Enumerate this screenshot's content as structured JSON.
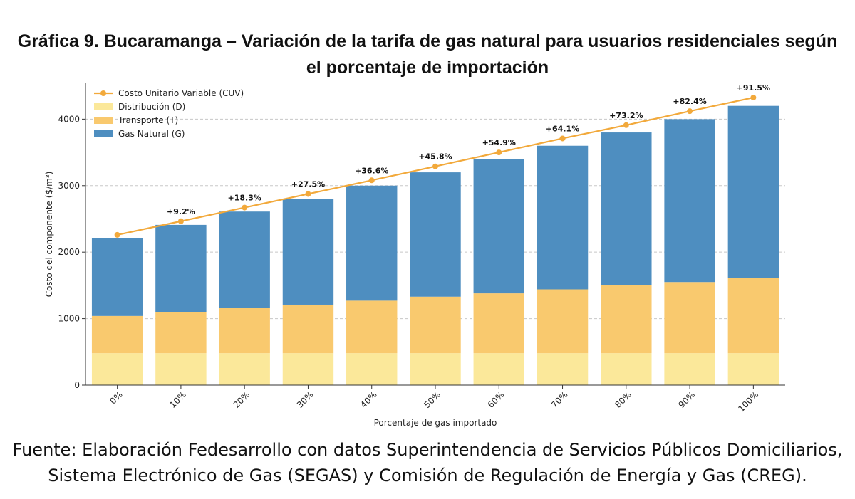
{
  "title": {
    "line1": "Gráfica 9. Bucaramanga – Variación de la tarifa de gas natural para usuarios residenciales según",
    "line2": "el porcentaje de importación"
  },
  "source": {
    "line1": "Fuente: Elaboración Fedesarrollo con datos Superintendencia de Servicios Públicos Domiciliarios,",
    "line2": "Sistema Electrónico de Gas (SEGAS) y Comisión de Regulación de Energía y Gas (CREG)."
  },
  "chart_data": {
    "type": "bar",
    "stacked": true,
    "categories": [
      "0%",
      "10%",
      "20%",
      "30%",
      "40%",
      "50%",
      "60%",
      "70%",
      "80%",
      "90%",
      "100%"
    ],
    "xlabel": "Porcentaje de gas importado",
    "ylabel": "Costo del componente ($/m³)",
    "ylim": [
      0,
      4550
    ],
    "yticks": [
      0,
      1000,
      2000,
      3000,
      4000
    ],
    "grid": "y",
    "legend_position": "top-left",
    "series": [
      {
        "name": "Distribución (D)",
        "color": "#fbe89a",
        "values": [
          480,
          480,
          480,
          480,
          480,
          480,
          480,
          480,
          480,
          480,
          480
        ]
      },
      {
        "name": "Transporte (T)",
        "color": "#f9c96e",
        "values": [
          560,
          620,
          680,
          730,
          790,
          850,
          900,
          960,
          1020,
          1070,
          1130
        ]
      },
      {
        "name": "Gas Natural (G)",
        "color": "#4e8ec0",
        "values": [
          1170,
          1310,
          1450,
          1590,
          1730,
          1870,
          2020,
          2160,
          2300,
          2450,
          2590
        ]
      }
    ],
    "line_series": {
      "name": "Costo Unitario Variable (CUV)",
      "color": "#f2a93b",
      "values": [
        2260,
        2465,
        2670,
        2875,
        3080,
        3290,
        3500,
        3710,
        3910,
        4120,
        4325
      ],
      "labels": [
        "",
        "+9.2%",
        "+18.3%",
        "+27.5%",
        "+36.6%",
        "+45.8%",
        "+54.9%",
        "+64.1%",
        "+73.2%",
        "+82.4%",
        "+91.5%"
      ]
    },
    "legend_order": [
      "Costo Unitario Variable (CUV)",
      "Distribución (D)",
      "Transporte (T)",
      "Gas Natural (G)"
    ]
  }
}
